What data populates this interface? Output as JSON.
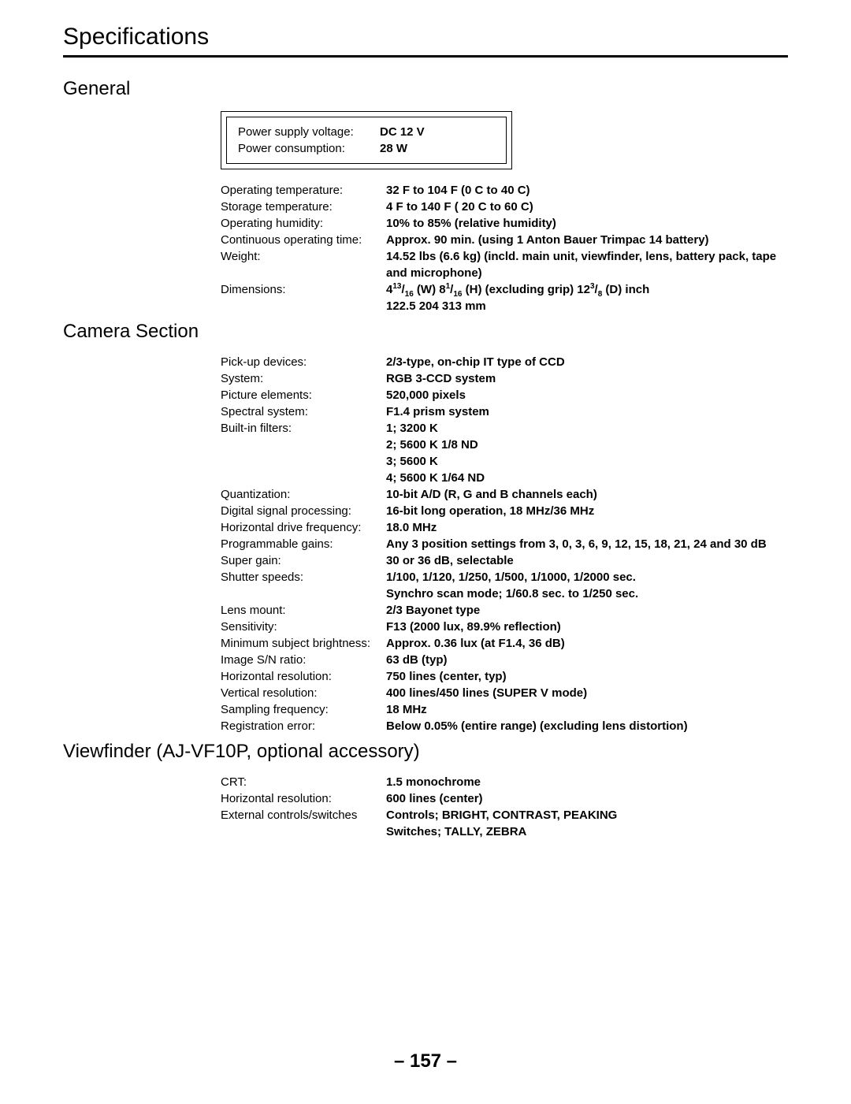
{
  "page_title": "Specifications",
  "page_number": "– 157 –",
  "sections": {
    "general": {
      "heading": "General",
      "power_box": [
        {
          "label": "Power supply voltage:",
          "value": "DC 12 V"
        },
        {
          "label": "Power consumption:",
          "value": "28 W"
        }
      ],
      "specs": [
        {
          "label": "Operating temperature:",
          "value": "32 F to 104 F (0 C to 40 C)"
        },
        {
          "label": "Storage temperature:",
          "value": "   4 F to 140 F (  20 C to 60 C)"
        },
        {
          "label": "Operating humidity:",
          "value": "10% to 85% (relative humidity)"
        },
        {
          "label": "Continuous operating time:",
          "value": "Approx. 90 min. (using 1 Anton Bauer Trimpac 14 battery)"
        },
        {
          "label": "Weight:",
          "value": "14.52 lbs (6.6 kg) (incld. main unit, viewfinder, lens, battery pack, tape and microphone)"
        },
        {
          "label": "Dimensions:",
          "value_html": "4<span class='frac'>13</span>/<span class='sub'>16</span> (W)   8<span class='frac'>1</span>/<span class='sub'>16</span> (H) (excluding grip) 12<span class='frac'>3</span>/<span class='sub'>8</span> (D) inch"
        },
        {
          "cont": "122.5   204   313 mm"
        }
      ]
    },
    "camera": {
      "heading": "Camera Section",
      "specs": [
        {
          "label": "Pick-up devices:",
          "value": "2/3-type, on-chip IT type of CCD"
        },
        {
          "label": "System:",
          "value": "RGB 3-CCD system"
        },
        {
          "label": "Picture elements:",
          "value": "520,000 pixels"
        },
        {
          "label": "Spectral system:",
          "value": "F1.4 prism system"
        },
        {
          "label": "Built-in filters:",
          "value": "1;  3200 K"
        },
        {
          "cont": "2;  5600 K   1/8 ND"
        },
        {
          "cont": "3;  5600 K"
        },
        {
          "cont": "4;  5600 K   1/64 ND"
        },
        {
          "label": "Quantization:",
          "value": "10-bit A/D (R, G and B channels each)"
        },
        {
          "label": "Digital signal processing:",
          "value": "16-bit long operation, 18 MHz/36 MHz"
        },
        {
          "label": "Horizontal drive frequency:",
          "value": "18.0 MHz"
        },
        {
          "label": "Programmable gains:",
          "value": "Any 3 position settings from 3, 0, 3, 6, 9, 12, 15, 18, 21, 24 and 30 dB"
        },
        {
          "label": "Super gain:",
          "value": "30 or 36 dB, selectable"
        },
        {
          "label": "Shutter speeds:",
          "value": "1/100, 1/120, 1/250, 1/500, 1/1000, 1/2000 sec."
        },
        {
          "cont": "Synchro scan mode;  1/60.8 sec. to 1/250 sec."
        },
        {
          "label": "Lens mount:",
          "value": "2/3   Bayonet type"
        },
        {
          "label": "Sensitivity:",
          "value": "F13 (2000 lux, 89.9% reflection)"
        },
        {
          "label": "Minimum subject brightness:",
          "value": "Approx. 0.36 lux (at F1.4,  36 dB)"
        },
        {
          "label": "Image S/N ratio:",
          "value": "63 dB (typ)"
        },
        {
          "label": "Horizontal resolution:",
          "value": "750 lines (center, typ)"
        },
        {
          "label": "Vertical resolution:",
          "value": "400 lines/450 lines (SUPER V mode)"
        },
        {
          "label": "Sampling frequency:",
          "value": "18 MHz"
        },
        {
          "label": "Registration error:",
          "value": "Below 0.05% (entire range) (excluding lens distortion)"
        }
      ]
    },
    "viewfinder": {
      "heading": "Viewfinder (AJ-VF10P, optional accessory)",
      "specs": [
        {
          "label": "CRT:",
          "value": "1.5   monochrome"
        },
        {
          "label": "Horizontal resolution:",
          "value": "600 lines (center)"
        },
        {
          "label": "External controls/switches",
          "value": "Controls;  BRIGHT, CONTRAST, PEAKING"
        },
        {
          "cont": "Switches;  TALLY, ZEBRA"
        }
      ]
    }
  }
}
